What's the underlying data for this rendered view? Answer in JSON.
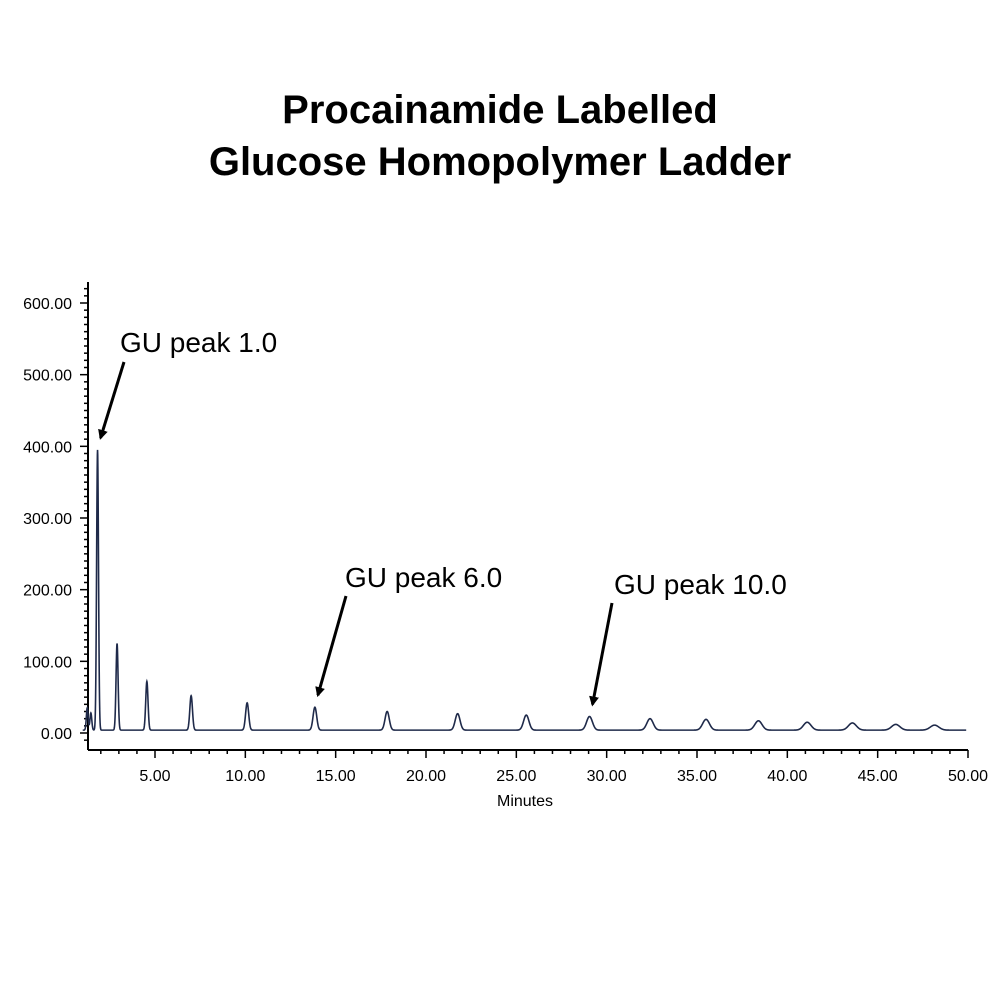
{
  "chart_data": {
    "type": "line",
    "title_lines": [
      "Procainamide Labelled",
      "Glucose Homopolymer Ladder"
    ],
    "xlabel": "Minutes",
    "ylabel": "",
    "xlim": [
      1.0,
      50.0
    ],
    "ylim": [
      -20,
      625
    ],
    "x_ticks": [
      5,
      10,
      15,
      20,
      25,
      30,
      35,
      40,
      45,
      50
    ],
    "x_tick_labels": [
      "5.00",
      "10.00",
      "15.00",
      "20.00",
      "25.00",
      "30.00",
      "35.00",
      "40.00",
      "45.00",
      "50.00"
    ],
    "y_ticks": [
      0,
      100,
      200,
      300,
      400,
      500,
      600
    ],
    "y_tick_labels": [
      "0.00",
      "100.00",
      "200.00",
      "300.00",
      "400.00",
      "500.00",
      "600.00"
    ],
    "grid": false,
    "line_color": "#1f2a4a",
    "baseline": 4,
    "peaks": [
      {
        "x": 1.25,
        "y": 35
      },
      {
        "x": 1.45,
        "y": 28
      },
      {
        "x": 1.82,
        "y": 395
      },
      {
        "x": 2.9,
        "y": 125
      },
      {
        "x": 4.55,
        "y": 72
      },
      {
        "x": 7.0,
        "y": 52
      },
      {
        "x": 10.1,
        "y": 42
      },
      {
        "x": 13.85,
        "y": 36
      },
      {
        "x": 17.85,
        "y": 30
      },
      {
        "x": 21.75,
        "y": 27
      },
      {
        "x": 25.55,
        "y": 25
      },
      {
        "x": 29.05,
        "y": 23
      },
      {
        "x": 32.4,
        "y": 20
      },
      {
        "x": 35.5,
        "y": 19
      },
      {
        "x": 38.4,
        "y": 17
      },
      {
        "x": 41.1,
        "y": 15
      },
      {
        "x": 43.6,
        "y": 14
      },
      {
        "x": 46.0,
        "y": 12
      },
      {
        "x": 48.15,
        "y": 11
      }
    ],
    "annotations": [
      {
        "text": "GU peak 1.0",
        "target_x": 1.82,
        "target_y": 395
      },
      {
        "text": "GU peak 6.0",
        "target_x": 13.85,
        "target_y": 36
      },
      {
        "text": "GU peak 10.0",
        "target_x": 29.05,
        "target_y": 23
      }
    ]
  }
}
